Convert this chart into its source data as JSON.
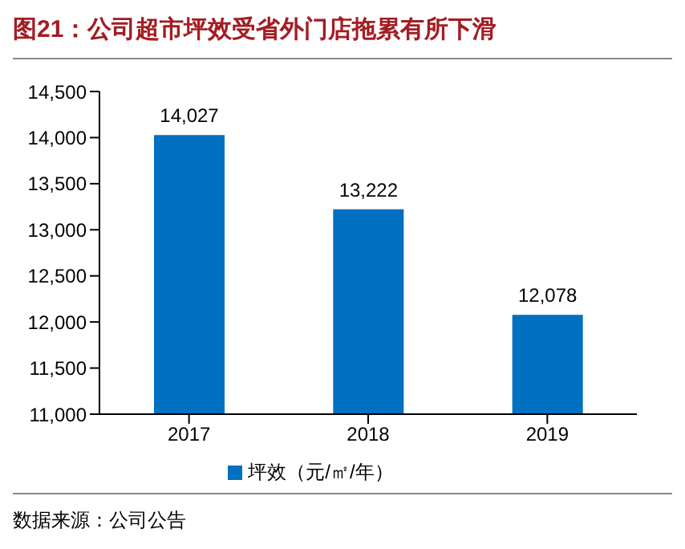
{
  "chart_data": {
    "type": "bar",
    "title": "图21：公司超市坪效受省外门店拖累有所下滑",
    "categories": [
      "2017",
      "2018",
      "2019"
    ],
    "series": [
      {
        "name": "坪效（元/㎡/年）",
        "color": "#0070c0",
        "values": [
          14027,
          13222,
          12078
        ],
        "value_labels": [
          "14,027",
          "13,222",
          "12,078"
        ]
      }
    ],
    "ylim": [
      11000,
      14500
    ],
    "yticks": [
      {
        "value": 11000,
        "label": "11,000"
      },
      {
        "value": 11500,
        "label": "11,500"
      },
      {
        "value": 12000,
        "label": "12,000"
      },
      {
        "value": 12500,
        "label": "12,500"
      },
      {
        "value": 13000,
        "label": "13,000"
      },
      {
        "value": 13500,
        "label": "13,500"
      },
      {
        "value": 14000,
        "label": "14,000"
      },
      {
        "value": 14500,
        "label": "14,500"
      }
    ],
    "legend": "bottom",
    "grid": false,
    "annotations": [
      "数据来源：公司公告"
    ]
  }
}
